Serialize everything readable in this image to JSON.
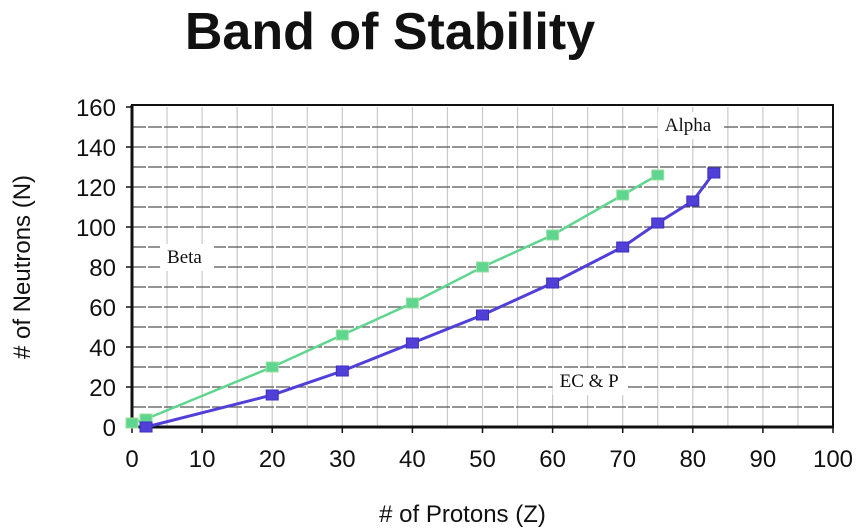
{
  "chart_data": {
    "type": "line",
    "title": "Band of Stability",
    "xlabel": "# of Protons (Z)",
    "ylabel": "# of Neutrons (N)",
    "xlim": [
      0,
      100
    ],
    "ylim": [
      0,
      160
    ],
    "xticks": [
      0,
      10,
      20,
      30,
      40,
      50,
      60,
      70,
      80,
      90,
      100
    ],
    "yticks": [
      0,
      20,
      40,
      60,
      80,
      100,
      120,
      140,
      160
    ],
    "grid": true,
    "series": [
      {
        "color": "#5fd68f",
        "marker": "square",
        "points": [
          [
            0,
            2
          ],
          [
            2,
            4
          ],
          [
            20,
            30
          ],
          [
            30,
            46
          ],
          [
            40,
            62
          ],
          [
            50,
            80
          ],
          [
            60,
            96
          ],
          [
            70,
            116
          ],
          [
            75,
            126
          ]
        ]
      },
      {
        "color": "#5140d8",
        "marker": "square",
        "points": [
          [
            2,
            0
          ],
          [
            20,
            16
          ],
          [
            30,
            28
          ],
          [
            40,
            42
          ],
          [
            50,
            56
          ],
          [
            60,
            72
          ],
          [
            70,
            90
          ],
          [
            75,
            102
          ],
          [
            80,
            113
          ],
          [
            83,
            127
          ]
        ]
      }
    ],
    "annotations": [
      {
        "text": "Beta",
        "x": 5,
        "y": 82
      },
      {
        "text": "Alpha",
        "x": 76,
        "y": 148
      },
      {
        "text": "EC & P",
        "x": 61,
        "y": 20
      }
    ]
  }
}
